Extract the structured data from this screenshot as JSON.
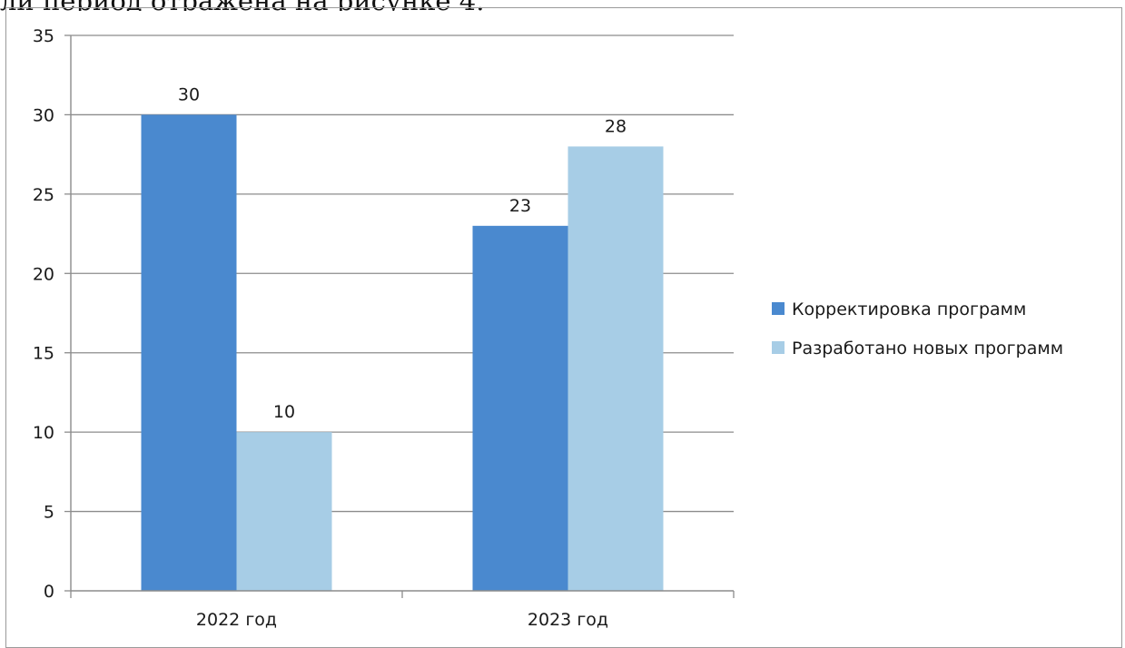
{
  "page": {
    "top_text": "ли период отражена на рисунке 4."
  },
  "chart_data": {
    "type": "bar",
    "title": "",
    "xlabel": "",
    "ylabel": "",
    "categories": [
      "2022 год",
      "2023 год"
    ],
    "series": [
      {
        "name": "Корректировка программ",
        "values": [
          30,
          23
        ],
        "color": "#4a89cf"
      },
      {
        "name": "Разработано новых программ",
        "values": [
          10,
          28
        ],
        "color": "#a7cde6"
      }
    ],
    "ylim": [
      0,
      35
    ],
    "yticks": [
      0,
      5,
      10,
      15,
      20,
      25,
      30,
      35
    ],
    "grid": true,
    "legend_position": "right",
    "data_labels": true
  }
}
